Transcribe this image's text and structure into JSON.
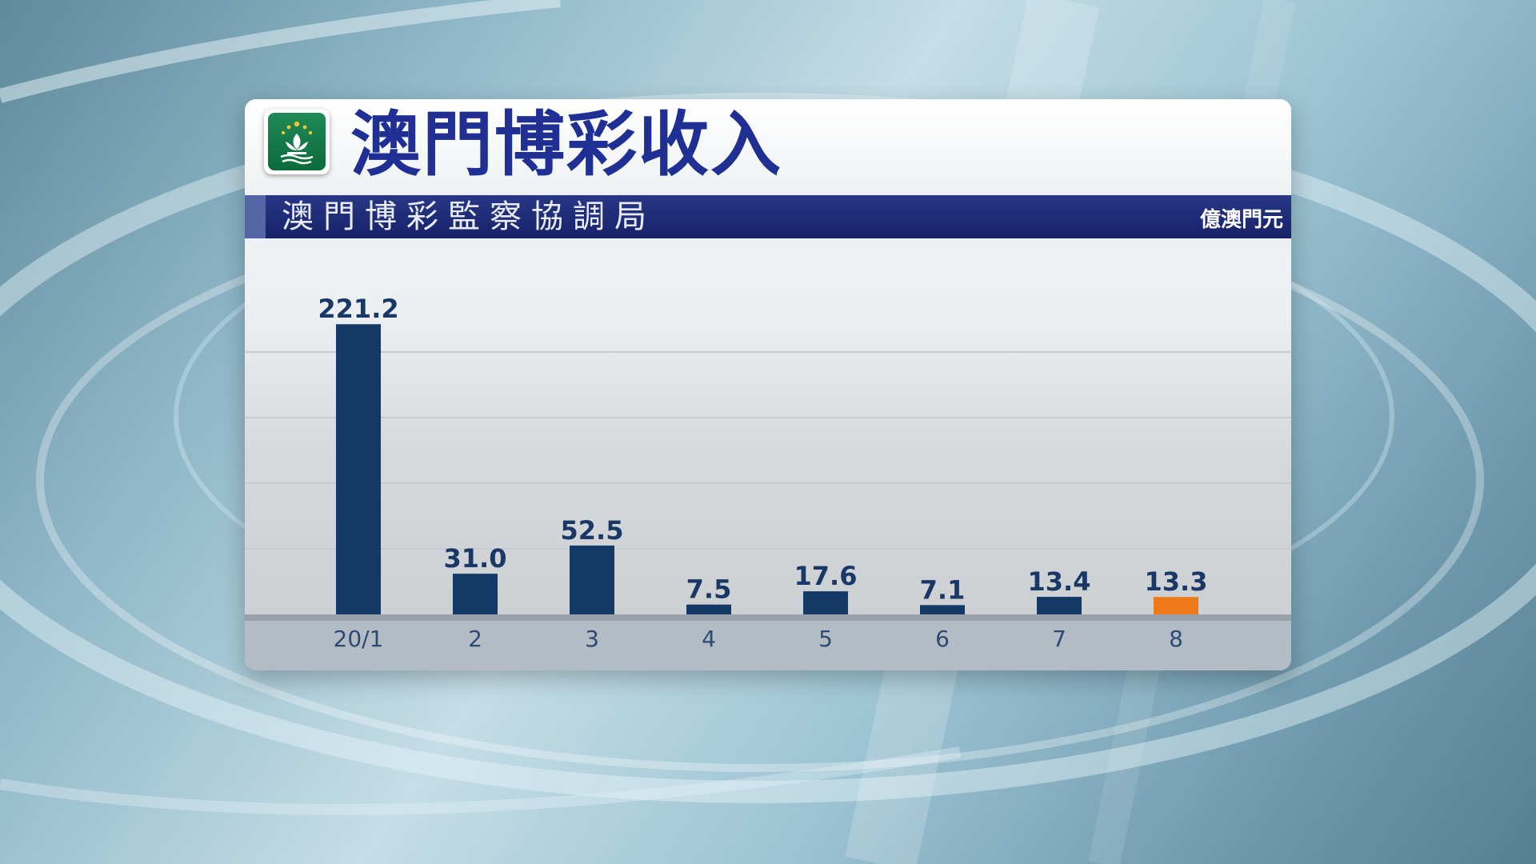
{
  "header": {
    "title": "澳門博彩收入",
    "subtitle": "澳門博彩監察協調局",
    "unit": "億澳門元"
  },
  "colors": {
    "bar": "#133a66",
    "bar_highlight": "#ee7a1a",
    "title": "#1f2f94",
    "label": "#1a3866",
    "subtitle_band": "#1c2a78"
  },
  "icons": {
    "emblem": "macau-emblem-icon"
  },
  "chart_data": {
    "type": "bar",
    "categories": [
      "20/1",
      "2",
      "3",
      "4",
      "5",
      "6",
      "7",
      "8"
    ],
    "values": [
      221.2,
      31.0,
      52.5,
      7.5,
      17.6,
      7.1,
      13.4,
      13.3
    ],
    "value_labels": [
      "221.2",
      "31.0",
      "52.5",
      "7.5",
      "17.6",
      "7.1",
      "13.4",
      "13.3"
    ],
    "highlight_index": 7,
    "title": "澳門博彩收入",
    "subtitle": "澳門博彩監察協調局",
    "ylabel": "億澳門元",
    "xlabel": "",
    "ylim": [
      0,
      250
    ],
    "grid": true,
    "legend": "none"
  }
}
